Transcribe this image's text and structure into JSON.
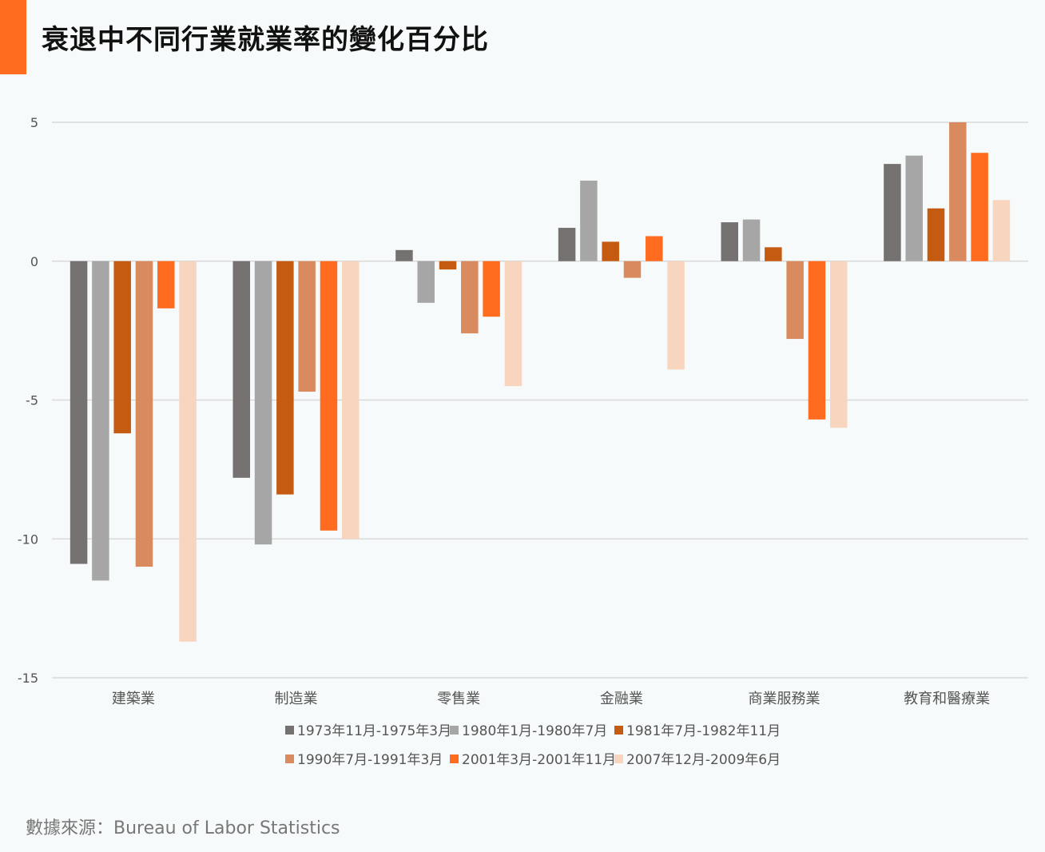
{
  "title": "衰退中不同行業就業率的變化百分比",
  "source": "數據來源：Bureau of Labor Statistics",
  "chart_data": {
    "type": "bar",
    "title": "衰退中不同行業就業率的變化百分比",
    "xlabel": "",
    "ylabel": "",
    "ylim": [
      -15,
      5
    ],
    "yticks": [
      5,
      0,
      -5,
      -10,
      -15
    ],
    "yticks_labels": [
      "5",
      "0",
      "-5",
      "-10",
      "-15"
    ],
    "grid": true,
    "legend_position": "bottom",
    "categories": [
      "建築業",
      "制造業",
      "零售業",
      "金融業",
      "商業服務業",
      "教育和醫療業"
    ],
    "series": [
      {
        "name": "1973年11月-1975年3月",
        "color": "#767171",
        "values": [
          -10.9,
          -7.8,
          0.4,
          1.2,
          1.4,
          3.5
        ]
      },
      {
        "name": "1980年1月-1980年7月",
        "color": "#a6a6a6",
        "values": [
          -11.5,
          -10.2,
          -1.5,
          2.9,
          1.5,
          3.8
        ]
      },
      {
        "name": "1981年7月-1982年11月",
        "color": "#c55a11",
        "values": [
          -6.2,
          -8.4,
          -0.3,
          0.7,
          0.5,
          1.9
        ]
      },
      {
        "name": "1990年7月-1991年3月",
        "color": "#d98b5f",
        "values": [
          -11.0,
          -4.7,
          -2.6,
          -0.6,
          -2.8,
          5.0
        ]
      },
      {
        "name": "2001年3月-2001年11月",
        "color": "#ff6b1f",
        "values": [
          -1.7,
          -9.7,
          -2.0,
          0.9,
          -5.7,
          3.9
        ]
      },
      {
        "name": "2007年12月-2009年6月",
        "color": "#f8d5bf",
        "values": [
          -13.7,
          -10.0,
          -4.5,
          -3.9,
          -6.0,
          2.2
        ]
      }
    ]
  }
}
